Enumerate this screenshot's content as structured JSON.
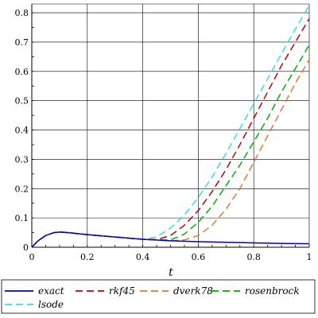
{
  "chart_data": {
    "type": "line",
    "title": "",
    "xlabel": "t",
    "ylabel": "",
    "xlim": [
      0,
      1
    ],
    "ylim": [
      0,
      0.83
    ],
    "grid": true,
    "legend_placement": "bottom",
    "x_ticks": [
      "0",
      "0.2",
      "0.4",
      "0.6",
      "0.8",
      "1"
    ],
    "y_ticks": [
      "0",
      "0.1",
      "0.2",
      "0.3",
      "0.4",
      "0.5",
      "0.6",
      "0.7",
      "0.8"
    ],
    "series": [
      {
        "name": "exact",
        "color": "#0000c0",
        "dash": "solid",
        "points": [
          [
            0,
            0
          ],
          [
            0.02,
            0.02
          ],
          [
            0.05,
            0.04
          ],
          [
            0.08,
            0.05
          ],
          [
            0.1,
            0.052
          ],
          [
            0.13,
            0.05
          ],
          [
            0.2,
            0.043
          ],
          [
            0.3,
            0.035
          ],
          [
            0.4,
            0.027
          ],
          [
            0.5,
            0.022
          ],
          [
            0.6,
            0.019
          ],
          [
            0.7,
            0.017
          ],
          [
            0.8,
            0.015
          ],
          [
            0.9,
            0.013
          ],
          [
            1.0,
            0.012
          ]
        ]
      },
      {
        "name": "rkf45",
        "color": "#c00000",
        "dash": "long",
        "points": [
          [
            0,
            0
          ],
          [
            0.02,
            0.02
          ],
          [
            0.05,
            0.04
          ],
          [
            0.08,
            0.05
          ],
          [
            0.1,
            0.052
          ],
          [
            0.13,
            0.05
          ],
          [
            0.2,
            0.043
          ],
          [
            0.3,
            0.035
          ],
          [
            0.4,
            0.027
          ],
          [
            0.45,
            0.026
          ],
          [
            0.5,
            0.04
          ],
          [
            0.55,
            0.075
          ],
          [
            0.6,
            0.125
          ],
          [
            0.65,
            0.19
          ],
          [
            0.7,
            0.265
          ],
          [
            0.75,
            0.35
          ],
          [
            0.8,
            0.44
          ],
          [
            0.85,
            0.53
          ],
          [
            0.9,
            0.62
          ],
          [
            0.95,
            0.7
          ],
          [
            1.0,
            0.78
          ]
        ]
      },
      {
        "name": "dverk78",
        "color": "#e07838",
        "dash": "long",
        "points": [
          [
            0,
            0
          ],
          [
            0.02,
            0.02
          ],
          [
            0.05,
            0.04
          ],
          [
            0.08,
            0.05
          ],
          [
            0.1,
            0.052
          ],
          [
            0.13,
            0.05
          ],
          [
            0.2,
            0.043
          ],
          [
            0.3,
            0.035
          ],
          [
            0.4,
            0.027
          ],
          [
            0.5,
            0.022
          ],
          [
            0.55,
            0.025
          ],
          [
            0.6,
            0.04
          ],
          [
            0.65,
            0.075
          ],
          [
            0.7,
            0.13
          ],
          [
            0.75,
            0.2
          ],
          [
            0.8,
            0.29
          ],
          [
            0.85,
            0.38
          ],
          [
            0.9,
            0.47
          ],
          [
            0.95,
            0.56
          ],
          [
            1.0,
            0.64
          ]
        ]
      },
      {
        "name": "rosenbrock",
        "color": "#00b000",
        "dash": "long",
        "points": [
          [
            0,
            0
          ],
          [
            0.02,
            0.02
          ],
          [
            0.05,
            0.04
          ],
          [
            0.08,
            0.05
          ],
          [
            0.1,
            0.052
          ],
          [
            0.13,
            0.05
          ],
          [
            0.2,
            0.043
          ],
          [
            0.3,
            0.035
          ],
          [
            0.4,
            0.027
          ],
          [
            0.5,
            0.025
          ],
          [
            0.55,
            0.045
          ],
          [
            0.6,
            0.085
          ],
          [
            0.65,
            0.14
          ],
          [
            0.7,
            0.21
          ],
          [
            0.75,
            0.28
          ],
          [
            0.8,
            0.36
          ],
          [
            0.85,
            0.44
          ],
          [
            0.9,
            0.53
          ],
          [
            0.95,
            0.61
          ],
          [
            1.0,
            0.69
          ]
        ]
      },
      {
        "name": "lsode",
        "color": "#33e0d8",
        "dash": "long",
        "points": [
          [
            0,
            0
          ],
          [
            0.02,
            0.02
          ],
          [
            0.05,
            0.04
          ],
          [
            0.08,
            0.05
          ],
          [
            0.1,
            0.052
          ],
          [
            0.13,
            0.05
          ],
          [
            0.2,
            0.043
          ],
          [
            0.3,
            0.035
          ],
          [
            0.4,
            0.027
          ],
          [
            0.45,
            0.035
          ],
          [
            0.5,
            0.065
          ],
          [
            0.55,
            0.11
          ],
          [
            0.6,
            0.17
          ],
          [
            0.65,
            0.24
          ],
          [
            0.7,
            0.32
          ],
          [
            0.75,
            0.405
          ],
          [
            0.8,
            0.49
          ],
          [
            0.85,
            0.575
          ],
          [
            0.9,
            0.66
          ],
          [
            0.95,
            0.745
          ],
          [
            1.0,
            0.825
          ]
        ]
      }
    ]
  }
}
